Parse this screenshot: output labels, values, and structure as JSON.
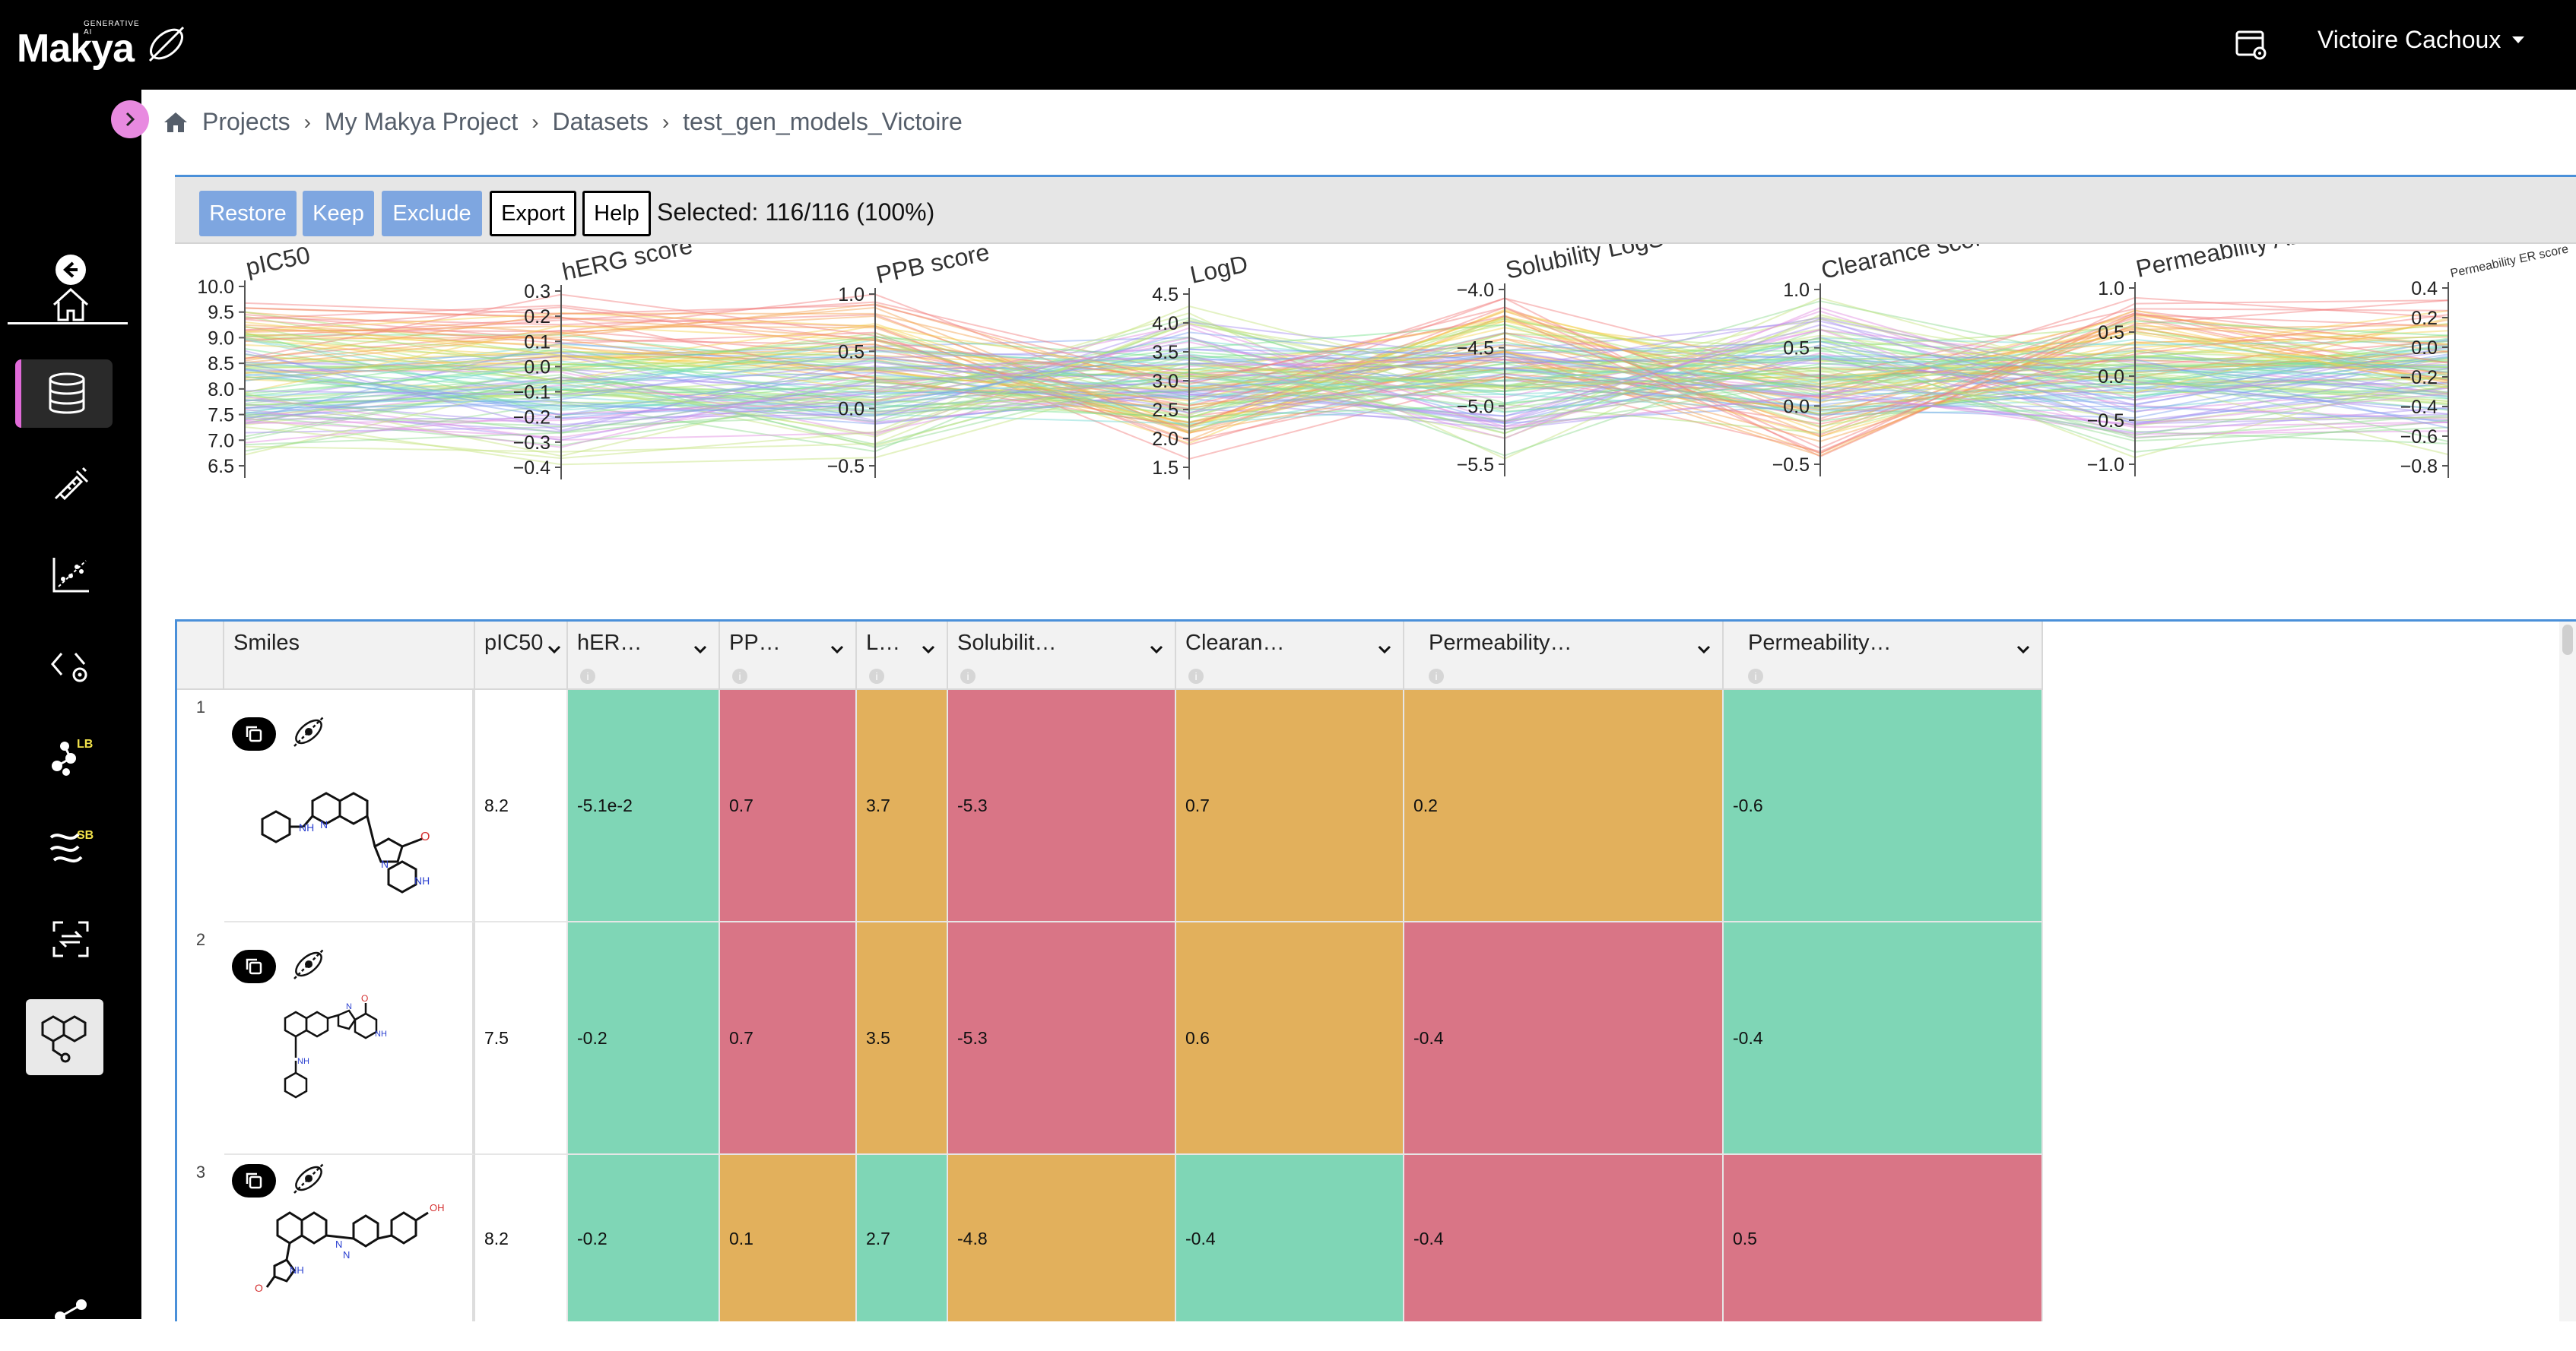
{
  "app": {
    "logo_text": "Makya",
    "logo_tag": "GENERATIVE AI"
  },
  "header": {
    "user_name": "Victoire Cachoux"
  },
  "sidebar": {
    "items": [
      {
        "name": "back",
        "icon": "back-arrow-icon"
      },
      {
        "name": "home",
        "icon": "home-icon"
      },
      {
        "name": "datasets",
        "icon": "database-icon",
        "active": true
      },
      {
        "name": "assays",
        "icon": "syringe-icon"
      },
      {
        "name": "models",
        "icon": "scatter-chart-icon"
      },
      {
        "name": "code-settings",
        "icon": "code-gear-icon"
      },
      {
        "name": "ligand-based",
        "icon": "lb-generation-icon",
        "badge": "LB"
      },
      {
        "name": "structure-based",
        "icon": "sb-generation-icon",
        "badge": "SB"
      },
      {
        "name": "transfer",
        "icon": "transfer-icon"
      },
      {
        "name": "molecules",
        "icon": "molecule-icon",
        "active": true
      },
      {
        "name": "share",
        "icon": "share-icon"
      }
    ]
  },
  "breadcrumb": [
    "Projects",
    "My Makya Project",
    "Datasets",
    "test_gen_models_Victoire"
  ],
  "toolbar": {
    "restore": "Restore",
    "keep": "Keep",
    "exclude": "Exclude",
    "export": "Export",
    "help": "Help",
    "selected": "Selected: 116/116 (100%)"
  },
  "parallel_axes": [
    {
      "label": "pIC50",
      "ticks": [
        "10.0",
        "9.5",
        "9.0",
        "8.5",
        "8.0",
        "7.5",
        "7.0",
        "6.5"
      ]
    },
    {
      "label": "hERG score",
      "ticks": [
        "0.3",
        "0.2",
        "0.1",
        "0.0",
        "−0.1",
        "−0.2",
        "−0.3",
        "−0.4"
      ]
    },
    {
      "label": "PPB score",
      "ticks": [
        "1.0",
        "0.5",
        "0.0",
        "−0.5"
      ]
    },
    {
      "label": "LogD",
      "ticks": [
        "4.5",
        "4.0",
        "3.5",
        "3.0",
        "2.5",
        "2.0",
        "1.5"
      ]
    },
    {
      "label": "Solubility LogS",
      "ticks": [
        "−4.0",
        "−4.5",
        "−5.0",
        "−5.5"
      ]
    },
    {
      "label": "Clearance score",
      "ticks": [
        "1.0",
        "0.5",
        "0.0",
        "−0.5"
      ]
    },
    {
      "label": "Permeability AB score",
      "ticks": [
        "1.0",
        "0.5",
        "0.0",
        "−0.5",
        "−1.0"
      ]
    },
    {
      "label": "Permeability ER score",
      "ticks": [
        "0.4",
        "0.2",
        "0.0",
        "−0.2",
        "−0.4",
        "−0.6",
        "−0.8"
      ]
    }
  ],
  "table": {
    "columns": [
      "Smiles",
      "pIC50",
      "hER…",
      "PP…",
      "L…",
      "Solubilit…",
      "Clearan…",
      "Permeability…",
      "Permeability…"
    ],
    "info_glyph": "i",
    "rows": [
      {
        "num": "1",
        "pic50": "8.2",
        "cells": [
          "-5.1e-2",
          "0.7",
          "3.7",
          "-5.3",
          "0.7",
          "0.2",
          "-0.6"
        ],
        "colors": [
          "green",
          "red",
          "orange",
          "red",
          "orange",
          "orange",
          "green"
        ]
      },
      {
        "num": "2",
        "pic50": "7.5",
        "cells": [
          "-0.2",
          "0.7",
          "3.5",
          "-5.3",
          "0.6",
          "-0.4",
          "-0.4"
        ],
        "colors": [
          "green",
          "red",
          "orange",
          "red",
          "orange",
          "red",
          "green"
        ]
      },
      {
        "num": "3",
        "pic50": "8.2",
        "cells": [
          "-0.2",
          "0.1",
          "2.7",
          "-4.8",
          "-0.4",
          "-0.4",
          "0.5"
        ],
        "colors": [
          "green",
          "orange",
          "green",
          "orange",
          "green",
          "red",
          "red"
        ]
      }
    ]
  },
  "colors": {
    "accent": "#4a90d9",
    "green": "#7fd6b6",
    "red": "#d97586",
    "orange": "#e2b05c",
    "pink": "#e88ae0"
  }
}
